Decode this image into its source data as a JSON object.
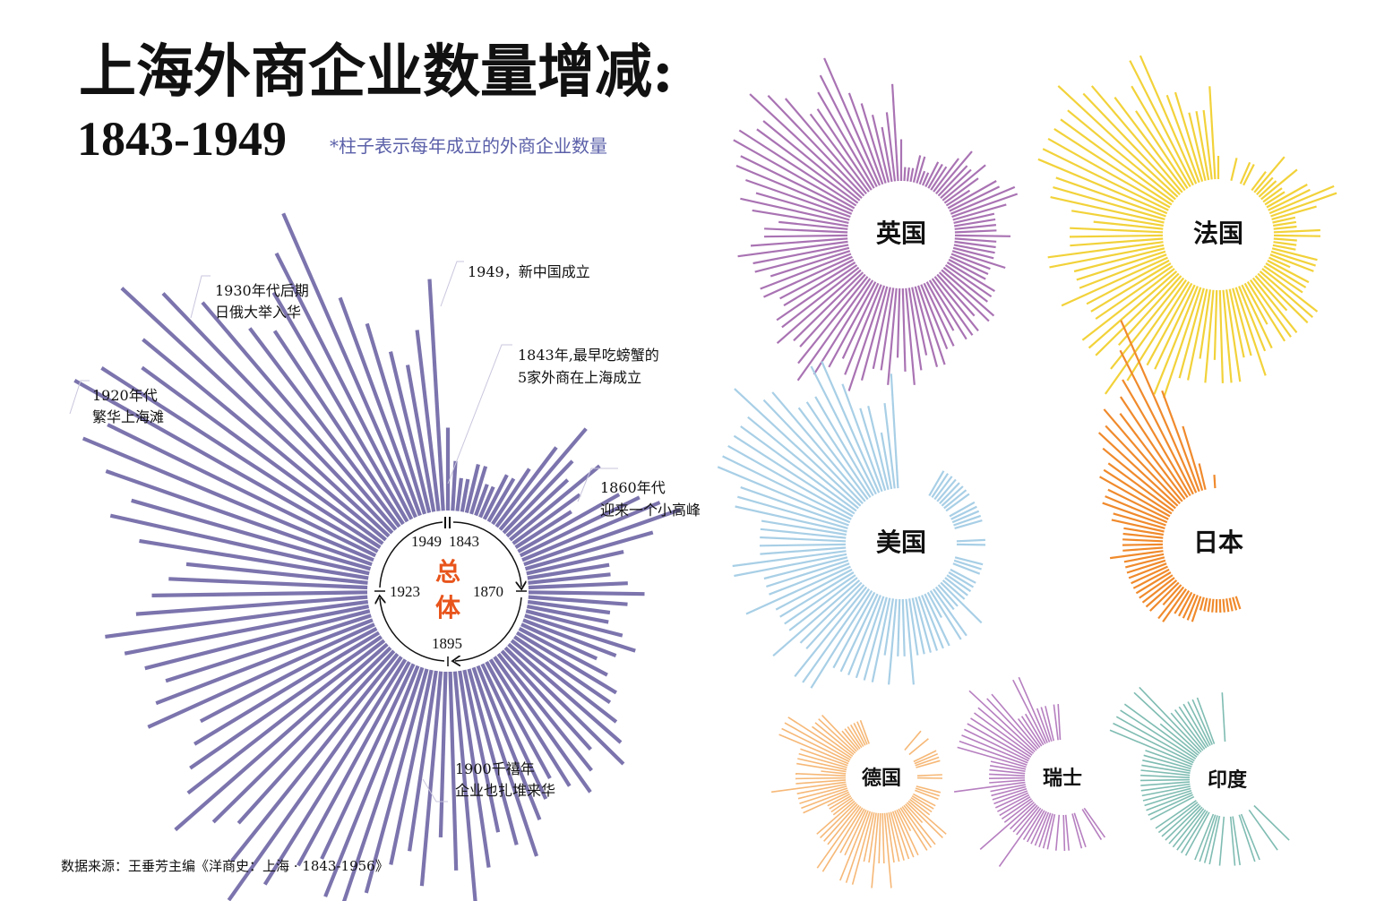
{
  "title": "上海外商企业数量增减:",
  "years": "1843-1949",
  "subtitle": "*柱子表示每年成立的外商企业数量",
  "source": "数据来源：王垂芳主编《洋商史：上海 · 1843-1956》",
  "colors": {
    "total": "#7b74ad",
    "uk": "#a973b3",
    "france": "#f2d23a",
    "usa": "#a8cfe6",
    "japan": "#f08a2c",
    "germany": "#f6b877",
    "switzerland": "#b67fc0",
    "india": "#7fbcb2",
    "accent": "#e8541b",
    "note": "#5a5fa8"
  },
  "annotations": {
    "a1949": "1949，新中国成立",
    "a1843_l1": "1843年,最早吃螃蟹的",
    "a1843_l2": "5家外商在上海成立",
    "a1860_l1": "1860年代",
    "a1860_l2": "迎来一个小高峰",
    "a1900_l1": "1900千禧年",
    "a1900_l2": "企业也扎堆来华",
    "a1920_l1": "1920年代",
    "a1920_l2": "繁华上海滩",
    "a1930_l1": "1930年代后期",
    "a1930_l2": "日俄大举入华"
  },
  "ticks": {
    "t1949": "1949",
    "t1843": "1843",
    "t1870": "1870",
    "t1895": "1895",
    "t1923": "1923"
  },
  "chart_data": {
    "type": "radial-bar",
    "start_year": 1843,
    "end_year": 1949,
    "description_unit": "每年成立的外商企业数量",
    "panels": [
      {
        "name": "总体",
        "values": [
          5,
          3,
          2,
          2,
          3,
          3,
          2,
          2,
          3,
          3,
          4,
          6,
          8,
          6,
          5,
          7,
          5,
          4,
          7,
          8,
          9,
          10,
          8,
          6,
          5,
          5,
          6,
          7,
          6,
          5,
          5,
          6,
          7,
          6,
          5,
          6,
          7,
          7,
          8,
          9,
          10,
          8,
          9,
          10,
          9,
          8,
          9,
          10,
          12,
          11,
          10,
          12,
          14,
          12,
          10,
          13,
          11,
          12,
          14,
          16,
          15,
          13,
          14,
          16,
          18,
          16,
          14,
          15,
          17,
          15,
          14,
          13,
          12,
          15,
          14,
          13,
          14,
          15,
          16,
          14,
          13,
          12,
          11,
          14,
          16,
          15,
          17,
          19,
          18,
          21,
          20,
          18,
          19,
          22,
          20,
          18,
          15,
          14,
          16,
          18,
          20,
          14,
          12,
          10,
          9,
          11,
          14
        ]
      },
      {
        "name": "英国",
        "values": [
          3,
          1,
          1,
          1,
          2,
          2,
          1,
          1,
          2,
          2,
          2,
          3,
          4,
          3,
          3,
          4,
          3,
          2,
          4,
          4,
          5,
          5,
          4,
          3,
          3,
          3,
          3,
          4,
          3,
          3,
          3,
          3,
          4,
          3,
          3,
          3,
          4,
          4,
          4,
          5,
          5,
          4,
          5,
          5,
          5,
          4,
          5,
          5,
          6,
          6,
          5,
          6,
          7,
          6,
          5,
          7,
          6,
          6,
          7,
          8,
          7,
          6,
          7,
          8,
          9,
          8,
          7,
          7,
          8,
          7,
          7,
          6,
          6,
          7,
          7,
          6,
          7,
          7,
          8,
          7,
          6,
          6,
          5,
          7,
          8,
          7,
          8,
          9,
          9,
          10,
          10,
          9,
          9,
          11,
          10,
          9,
          7,
          7,
          8,
          9,
          10,
          7,
          6,
          5,
          4,
          5,
          7
        ]
      },
      {
        "name": "法国",
        "values": [
          1,
          0,
          0,
          0,
          1,
          0,
          0,
          1,
          1,
          0,
          0,
          1,
          2,
          1,
          1,
          2,
          1,
          1,
          2,
          2,
          3,
          3,
          2,
          1,
          1,
          1,
          2,
          2,
          1,
          1,
          1,
          2,
          2,
          2,
          1,
          2,
          2,
          2,
          3,
          3,
          3,
          2,
          3,
          3,
          3,
          2,
          3,
          3,
          4,
          3,
          3,
          4,
          4,
          4,
          3,
          4,
          3,
          4,
          4,
          5,
          5,
          4,
          4,
          5,
          6,
          5,
          4,
          5,
          5,
          5,
          4,
          4,
          4,
          5,
          4,
          4,
          4,
          5,
          5,
          4,
          4,
          4,
          3,
          4,
          5,
          5,
          5,
          6,
          6,
          6,
          6,
          6,
          6,
          7,
          6,
          6,
          5,
          4,
          5,
          6,
          6,
          4,
          4,
          3,
          3,
          3,
          4
        ]
      },
      {
        "name": "美国",
        "values": [
          0,
          0,
          0,
          0,
          0,
          0,
          0,
          0,
          0,
          1,
          1,
          1,
          1,
          1,
          1,
          1,
          1,
          0,
          1,
          1,
          1,
          1,
          1,
          0,
          0,
          0,
          1,
          1,
          0,
          0,
          0,
          1,
          1,
          1,
          0,
          1,
          1,
          1,
          1,
          1,
          2,
          1,
          1,
          2,
          2,
          1,
          2,
          2,
          2,
          2,
          2,
          2,
          3,
          2,
          2,
          3,
          2,
          3,
          3,
          3,
          3,
          3,
          3,
          4,
          4,
          4,
          3,
          3,
          4,
          3,
          3,
          3,
          3,
          4,
          3,
          3,
          3,
          4,
          4,
          3,
          3,
          3,
          3,
          3,
          4,
          4,
          4,
          5,
          5,
          5,
          5,
          5,
          5,
          6,
          5,
          5,
          4,
          4,
          4,
          5,
          5,
          4,
          3,
          3,
          2,
          3,
          4
        ]
      },
      {
        "name": "日本",
        "values": [
          0,
          0,
          0,
          0,
          0,
          0,
          0,
          0,
          0,
          0,
          0,
          0,
          0,
          0,
          0,
          0,
          0,
          0,
          0,
          0,
          0,
          0,
          0,
          0,
          0,
          0,
          0,
          0,
          0,
          0,
          0,
          0,
          0,
          0,
          0,
          0,
          0,
          0,
          0,
          0,
          0,
          0,
          0,
          0,
          0,
          0,
          0,
          0,
          1,
          1,
          1,
          1,
          1,
          1,
          1,
          1,
          1,
          1,
          1,
          2,
          2,
          2,
          2,
          2,
          3,
          3,
          2,
          3,
          3,
          3,
          3,
          3,
          3,
          3,
          3,
          3,
          3,
          3,
          4,
          3,
          3,
          3,
          3,
          3,
          4,
          4,
          5,
          5,
          5,
          6,
          6,
          6,
          7,
          8,
          8,
          9,
          8,
          9,
          10,
          12,
          14,
          8,
          5,
          2,
          0,
          0,
          1
        ]
      },
      {
        "name": "德国",
        "values": [
          0,
          0,
          0,
          0,
          0,
          0,
          0,
          0,
          0,
          0,
          0,
          0,
          1,
          0,
          0,
          1,
          0,
          0,
          0,
          1,
          1,
          1,
          1,
          0,
          0,
          0,
          1,
          1,
          0,
          0,
          0,
          1,
          1,
          1,
          0,
          1,
          1,
          1,
          1,
          2,
          2,
          1,
          2,
          2,
          2,
          1,
          2,
          2,
          2,
          2,
          2,
          2,
          3,
          2,
          2,
          3,
          2,
          2,
          3,
          3,
          3,
          2,
          2,
          3,
          3,
          2,
          2,
          2,
          2,
          1,
          1,
          1,
          1,
          2,
          2,
          2,
          2,
          2,
          3,
          2,
          2,
          2,
          1,
          2,
          2,
          2,
          2,
          3,
          3,
          3,
          3,
          2,
          2,
          2,
          2,
          1,
          1,
          1,
          1,
          1,
          1,
          1,
          0,
          0,
          0,
          0,
          0
        ]
      },
      {
        "name": "瑞士",
        "values": [
          0,
          0,
          0,
          0,
          0,
          0,
          0,
          0,
          0,
          0,
          0,
          0,
          0,
          0,
          0,
          0,
          0,
          0,
          0,
          0,
          0,
          0,
          0,
          0,
          0,
          0,
          0,
          0,
          0,
          0,
          0,
          0,
          0,
          0,
          0,
          0,
          0,
          0,
          0,
          0,
          0,
          0,
          0,
          1,
          1,
          0,
          0,
          0,
          1,
          1,
          0,
          0,
          1,
          1,
          0,
          1,
          0,
          1,
          1,
          1,
          1,
          1,
          1,
          1,
          2,
          1,
          1,
          1,
          2,
          1,
          1,
          1,
          1,
          1,
          1,
          1,
          1,
          1,
          2,
          1,
          1,
          1,
          1,
          1,
          1,
          2,
          2,
          2,
          2,
          2,
          2,
          2,
          2,
          3,
          2,
          2,
          1,
          1,
          1,
          2,
          2,
          1,
          1,
          1,
          0,
          1,
          1
        ]
      },
      {
        "name": "印度",
        "values": [
          0,
          0,
          0,
          0,
          0,
          0,
          0,
          0,
          0,
          0,
          0,
          0,
          0,
          0,
          0,
          0,
          0,
          0,
          0,
          0,
          0,
          0,
          0,
          0,
          0,
          0,
          0,
          0,
          0,
          0,
          0,
          0,
          0,
          0,
          0,
          0,
          0,
          0,
          0,
          0,
          1,
          0,
          0,
          1,
          0,
          0,
          0,
          1,
          1,
          0,
          0,
          1,
          1,
          0,
          0,
          1,
          0,
          1,
          1,
          1,
          1,
          0,
          1,
          1,
          1,
          1,
          1,
          1,
          1,
          1,
          1,
          0,
          1,
          1,
          1,
          1,
          1,
          1,
          1,
          1,
          1,
          1,
          1,
          1,
          1,
          1,
          1,
          2,
          2,
          2,
          2,
          2,
          1,
          2,
          2,
          1,
          1,
          1,
          1,
          1,
          1,
          1,
          0,
          0,
          0,
          0,
          1
        ]
      }
    ]
  }
}
